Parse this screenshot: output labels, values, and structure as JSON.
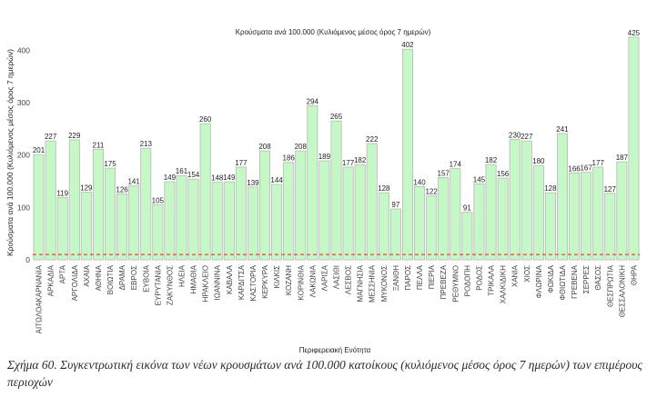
{
  "chart_data": {
    "type": "bar",
    "title": "Κρούσματα ανά 100.000 (Κυλιόμενος μέσος όρος 7 ημερών)",
    "xlabel": "Περιφερειακή Ενότητα",
    "ylabel": "Κρούσματα ανά 100.000 (Κυλιόμενος μέσος όρος 7 ημερών)",
    "ylim": [
      0,
      430
    ],
    "yticks": [
      0,
      100,
      200,
      300,
      400
    ],
    "grid": false,
    "reference_line": {
      "value": 10,
      "style": "dashed",
      "color": "#e05a4a"
    },
    "bar_color": "#c6f7c6",
    "bar_edge_color": "#b8b8b8",
    "categories": [
      "ΑΙΤΩΛΟΑΚΑΡΝΑΝΙΑ",
      "ΑΡΚΑΔΙΑ",
      "ΑΡΤΑ",
      "ΑΡΓΟΛΙΔΑ",
      "ΑΧΑΙΑ",
      "ΑΘΗΝΑ",
      "ΒΟΙΩΤΙΑ",
      "ΔΡΑΜΑ",
      "ΕΒΡΟΣ",
      "ΕΥΒΟΙΑ",
      "ΕΥΡΥΤΑΝΙΑ",
      "ΖΑΚΥΝΘΟΣ",
      "ΗΛΕΙΑ",
      "ΗΜΑΘΙΑ",
      "ΗΡΑΚΛΕΙΟ",
      "ΙΩΑΝΝΙΝΑ",
      "ΚΑΒΑΛΑ",
      "ΚΑΡΔΙΤΣΑ",
      "ΚΑΣΤΟΡΙΑ",
      "ΚΕΡΚΥΡΑ",
      "ΚΙΛΚΙΣ",
      "ΚΟΖΑΝΗ",
      "ΚΟΡΙΝΘΙΑ",
      "ΛΑΚΩΝΙΑ",
      "ΛΑΡΙΣΑ",
      "ΛΑΣΙΘΙ",
      "ΛΕΣΒΟΣ",
      "ΜΑΓΝΗΣΙΑ",
      "ΜΕΣΣΗΝΙΑ",
      "ΜΥΚΟΝΟΣ",
      "ΞΑΝΘΗ",
      "ΠΑΡΟΣ",
      "ΠΕΛΛΑ",
      "ΠΙΕΡΙΑ",
      "ΠΡΕΒΕΖΑ",
      "ΡΕΘΥΜΝΟ",
      "ΡΟΔΟΠΗ",
      "ΡΟΔΟΣ",
      "ΤΡΙΚΑΛΑ",
      "ΧΑΛΚΙΔΙΚΗ",
      "ΧΑΝΙΑ",
      "ΧΙΟΣ",
      "ΦΛΩΡΙΝΑ",
      "ΦΩΚΙΔΑ",
      "ΦΘΙΩΤΙΔΑ",
      "ΓΡΕΒΕΝΑ",
      "ΣΕΡΡΕΣ",
      "ΘΑΣΟΣ",
      "ΘΕΣΠΡΩΤΙΑ",
      "ΘΕΣΣΑΛΟΝΙΚΗ",
      "ΘΗΡΑ"
    ],
    "values": [
      201,
      227,
      119,
      229,
      129,
      211,
      175,
      126,
      141,
      213,
      105,
      149,
      161,
      154,
      260,
      148,
      149,
      177,
      139,
      208,
      144,
      186,
      208,
      294,
      189,
      265,
      177,
      182,
      222,
      128,
      97,
      402,
      140,
      122,
      157,
      174,
      91,
      145,
      182,
      156,
      230,
      227,
      180,
      128,
      241,
      166,
      167,
      177,
      127,
      187,
      425
    ]
  },
  "caption": {
    "text": "Σχήμα 60. Συγκεντρωτική εικόνα των νέων κρουσμάτων ανά 100.000 κατοίκους (κυλιόμενος μέσος όρος 7 ημερών) των επιμέρους περιοχών"
  }
}
